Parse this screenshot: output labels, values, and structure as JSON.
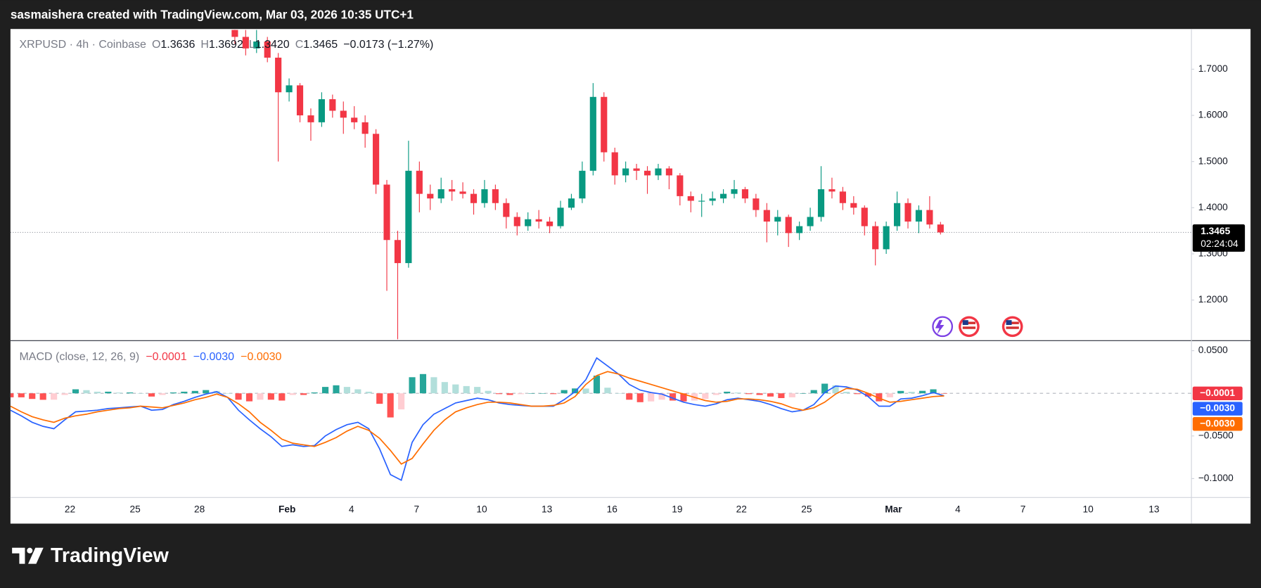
{
  "header": {
    "text": "sasmaishera created with TradingView.com, Mar 03, 2026 10:35 UTC+1"
  },
  "footer": {
    "brand": "TradingView"
  },
  "chart_data": [
    {
      "type": "candlestick",
      "symbol": "XRPUSD · 4h · Coinbase",
      "ohlc_labels": [
        "O",
        "H",
        "L",
        "C"
      ],
      "last_labels": [
        "1.3636",
        "1.3692",
        "1.3420",
        "1.3465"
      ],
      "change_label": "−0.0173 (−1.27%)",
      "countdown": "02:24:04",
      "up_color": "#089981",
      "down_color": "#f23645",
      "open": [
        1.785,
        1.77,
        1.745,
        1.76,
        1.725,
        1.65,
        1.665,
        1.6,
        1.585,
        1.635,
        1.61,
        1.595,
        1.585,
        1.56,
        1.45,
        1.33,
        1.28,
        1.48,
        1.43,
        1.42,
        1.44,
        1.435,
        1.43,
        1.41,
        1.44,
        1.41,
        1.38,
        1.36,
        1.375,
        1.37,
        1.36,
        1.4,
        1.42,
        1.48,
        1.64,
        1.52,
        1.47,
        1.485,
        1.48,
        1.47,
        1.485,
        1.47,
        1.425,
        1.415,
        1.415,
        1.42,
        1.43,
        1.44,
        1.42,
        1.395,
        1.37,
        1.38,
        1.345,
        1.36,
        1.38,
        1.44,
        1.435,
        1.41,
        1.4,
        1.36,
        1.31,
        1.36,
        1.41,
        1.37,
        1.395,
        1.3636
      ],
      "high": [
        1.79,
        1.785,
        1.785,
        1.77,
        1.735,
        1.68,
        1.67,
        1.615,
        1.65,
        1.645,
        1.63,
        1.62,
        1.6,
        1.57,
        1.46,
        1.35,
        1.545,
        1.5,
        1.45,
        1.465,
        1.46,
        1.455,
        1.44,
        1.46,
        1.45,
        1.42,
        1.39,
        1.39,
        1.395,
        1.38,
        1.415,
        1.43,
        1.5,
        1.67,
        1.65,
        1.53,
        1.5,
        1.495,
        1.49,
        1.495,
        1.49,
        1.475,
        1.435,
        1.43,
        1.435,
        1.44,
        1.46,
        1.445,
        1.43,
        1.41,
        1.395,
        1.385,
        1.37,
        1.4,
        1.49,
        1.465,
        1.445,
        1.425,
        1.405,
        1.37,
        1.37,
        1.435,
        1.42,
        1.405,
        1.425,
        1.3692
      ],
      "low": [
        1.755,
        1.73,
        1.735,
        1.715,
        1.5,
        1.63,
        1.585,
        1.545,
        1.575,
        1.595,
        1.56,
        1.57,
        1.53,
        1.43,
        1.22,
        1.115,
        1.27,
        1.39,
        1.395,
        1.41,
        1.415,
        1.42,
        1.385,
        1.4,
        1.395,
        1.355,
        1.34,
        1.35,
        1.355,
        1.345,
        1.355,
        1.395,
        1.41,
        1.47,
        1.5,
        1.45,
        1.455,
        1.46,
        1.43,
        1.46,
        1.44,
        1.405,
        1.39,
        1.38,
        1.405,
        1.41,
        1.42,
        1.41,
        1.38,
        1.325,
        1.34,
        1.315,
        1.33,
        1.35,
        1.37,
        1.42,
        1.395,
        1.385,
        1.34,
        1.275,
        1.3,
        1.35,
        1.355,
        1.345,
        1.355,
        1.342
      ],
      "close": [
        1.77,
        1.745,
        1.76,
        1.725,
        1.65,
        1.665,
        1.6,
        1.585,
        1.635,
        1.61,
        1.595,
        1.585,
        1.56,
        1.45,
        1.33,
        1.28,
        1.48,
        1.43,
        1.42,
        1.44,
        1.435,
        1.43,
        1.41,
        1.44,
        1.41,
        1.38,
        1.36,
        1.375,
        1.37,
        1.36,
        1.4,
        1.42,
        1.48,
        1.64,
        1.52,
        1.47,
        1.485,
        1.48,
        1.47,
        1.485,
        1.47,
        1.425,
        1.415,
        1.415,
        1.42,
        1.43,
        1.44,
        1.42,
        1.395,
        1.37,
        1.38,
        1.345,
        1.36,
        1.38,
        1.44,
        1.435,
        1.41,
        1.4,
        1.36,
        1.31,
        1.36,
        1.41,
        1.37,
        1.395,
        1.3636,
        1.3465
      ],
      "ylim": [
        1.1129,
        1.7871
      ],
      "yticks": [
        {
          "value": 1.2,
          "label": "1.2000"
        },
        {
          "value": 1.3,
          "label": "1.3000"
        },
        {
          "value": 1.4,
          "label": "1.4000"
        },
        {
          "value": 1.5,
          "label": "1.5000"
        },
        {
          "value": 1.6,
          "label": "1.6000"
        },
        {
          "value": 1.7,
          "label": "1.7000"
        }
      ],
      "grid": false,
      "x_labels": [
        "22",
        "25",
        "28",
        "Feb",
        "4",
        "7",
        "10",
        "13",
        "16",
        "19",
        "22",
        "25",
        "Mar",
        "4",
        "7",
        "10",
        "13"
      ]
    },
    {
      "type": "macd",
      "title": "MACD (close, 12, 26, 9)",
      "series": [
        {
          "kind": "histogram",
          "color": "#f23645",
          "colors": [
            "#26a69a",
            "#b2dfdb",
            "#ff5252",
            "#ffcdd2"
          ],
          "last_label": "−0.0001",
          "values": [
            -0.0047,
            -0.0047,
            -0.0066,
            -0.0076,
            -0.0075,
            -0.0019,
            0.0047,
            0.0037,
            0.0019,
            0.0019,
            0.0009,
            0.001,
            0,
            -0.0038,
            -0.0019,
            0.001,
            0.0019,
            0.0028,
            0.0038,
            0.0028,
            0,
            -0.0075,
            -0.0094,
            -0.0075,
            -0.0075,
            -0.0085,
            -0.0019,
            -0.0019,
            0.001,
            0.0075,
            0.0094,
            0.0075,
            0.0047,
            0.0019,
            -0.0123,
            -0.0283,
            -0.0189,
            0.0189,
            0.0226,
            0.0189,
            0.0132,
            0.0104,
            0.0085,
            0.0075,
            0.0029,
            -0.0009,
            -0.0019,
            -0.001,
            0,
            0,
            -0.0009,
            0.0038,
            0.0057,
            0.0056,
            0.0207,
            0.0066,
            0,
            -0.0075,
            -0.0104,
            -0.0095,
            -0.0075,
            -0.0085,
            -0.0095,
            -0.0085,
            -0.0066,
            -0.0019,
            0.0019,
            0.0009,
            -0.0009,
            -0.0019,
            -0.0038,
            -0.0056,
            -0.0047,
            0,
            0.0038,
            0.0113,
            0.0094,
            0.0018,
            -0.0009,
            -0.0038,
            -0.0094,
            -0.0047,
            0.0028,
            0.0018,
            0.0029,
            0.0047,
            -0.0001
          ]
        },
        {
          "kind": "line",
          "color": "#2962ff",
          "last_label": "−0.0030",
          "values": [
            -0.0198,
            -0.0264,
            -0.034,
            -0.0387,
            -0.0415,
            -0.0311,
            -0.0217,
            -0.0208,
            -0.0198,
            -0.0179,
            -0.017,
            -0.016,
            -0.0151,
            -0.0198,
            -0.0189,
            -0.0132,
            -0.0094,
            -0.0047,
            -0.0009,
            0.0019,
            -0.0047,
            -0.0198,
            -0.0311,
            -0.0415,
            -0.0509,
            -0.0623,
            -0.0604,
            -0.0623,
            -0.0613,
            -0.05,
            -0.0425,
            -0.0368,
            -0.034,
            -0.0415,
            -0.0651,
            -0.0953,
            -0.1019,
            -0.0575,
            -0.0368,
            -0.0245,
            -0.0179,
            -0.0113,
            -0.0085,
            -0.0057,
            -0.0075,
            -0.0113,
            -0.0132,
            -0.0142,
            -0.0151,
            -0.0151,
            -0.0151,
            -0.0075,
            0.0019,
            0.016,
            0.0415,
            0.0321,
            0.0226,
            0.0104,
            0.0038,
            0.0009,
            -0.0009,
            -0.0057,
            -0.0104,
            -0.0132,
            -0.0151,
            -0.0123,
            -0.0075,
            -0.0057,
            -0.0075,
            -0.0094,
            -0.0132,
            -0.0179,
            -0.0217,
            -0.0198,
            -0.0132,
            0.0009,
            0.0085,
            0.0075,
            0.0038,
            -0.0038,
            -0.0151,
            -0.0151,
            -0.0066,
            -0.0057,
            -0.0028,
            0.0009,
            -0.003
          ]
        },
        {
          "kind": "line",
          "color": "#ff6d00",
          "last_label": "−0.0030",
          "values": [
            -0.0151,
            -0.0217,
            -0.0274,
            -0.0311,
            -0.034,
            -0.0292,
            -0.0264,
            -0.0245,
            -0.0217,
            -0.0198,
            -0.0179,
            -0.017,
            -0.0151,
            -0.016,
            -0.017,
            -0.0142,
            -0.0113,
            -0.0075,
            -0.0047,
            -0.0009,
            -0.0047,
            -0.0123,
            -0.0217,
            -0.034,
            -0.0434,
            -0.0538,
            -0.0585,
            -0.0604,
            -0.0623,
            -0.0575,
            -0.0519,
            -0.0443,
            -0.0387,
            -0.0434,
            -0.0528,
            -0.067,
            -0.083,
            -0.0764,
            -0.0594,
            -0.0434,
            -0.0311,
            -0.0217,
            -0.017,
            -0.0132,
            -0.0104,
            -0.0104,
            -0.0113,
            -0.0132,
            -0.0151,
            -0.0151,
            -0.0142,
            -0.0113,
            -0.0038,
            0.0104,
            0.0208,
            0.0255,
            0.0226,
            0.0179,
            0.0142,
            0.0104,
            0.0066,
            0.0028,
            -0.0009,
            -0.0047,
            -0.0085,
            -0.0104,
            -0.0094,
            -0.0066,
            -0.0066,
            -0.0075,
            -0.0094,
            -0.0123,
            -0.017,
            -0.0198,
            -0.017,
            -0.0104,
            -0.0009,
            0.0057,
            0.0047,
            0.0,
            -0.0057,
            -0.0104,
            -0.0094,
            -0.0075,
            -0.0057,
            -0.0038,
            -0.003
          ]
        }
      ],
      "ylim": [
        -0.1217,
        0.0613
      ],
      "yticks": [
        {
          "value": 0.05,
          "label": "0.0500"
        },
        {
          "value": -0.05,
          "label": "−0.0500"
        },
        {
          "value": -0.1,
          "label": "−0.1000"
        }
      ]
    }
  ]
}
